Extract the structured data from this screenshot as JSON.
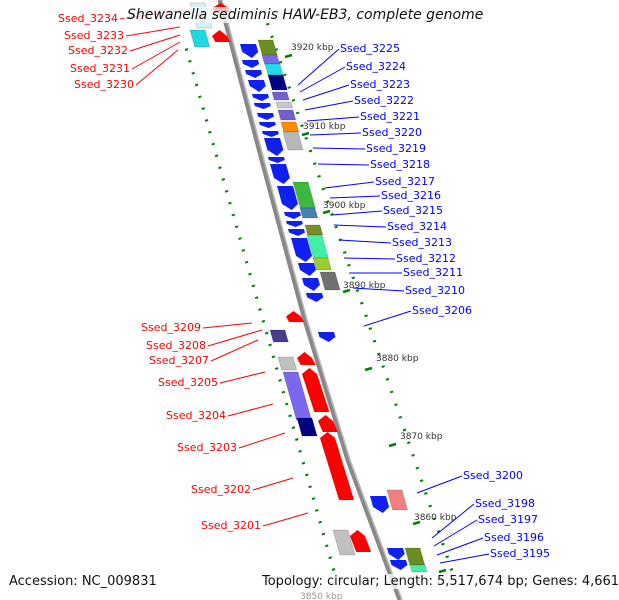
{
  "title": "Shewanella sediminis HAW-EB3, complete genome",
  "footer": {
    "accession": "Accession: NC_009831",
    "summary": "Topology: circular; Length: 5,517,674 bp; Genes: 4,661"
  },
  "colors": {
    "forward_label": "#0000ff",
    "reverse_label": "#ff0000",
    "backbone": "#808080",
    "tick": "#008000"
  },
  "tick_labels": [
    "3920 kbp",
    "3910 kbp",
    "3900 kbp",
    "3890 kbp",
    "3880 kbp",
    "3870 kbp",
    "3860 kbp",
    "3850 kbp"
  ],
  "right_labels": [
    "Ssed_3225",
    "Ssed_3224",
    "Ssed_3223",
    "Ssed_3222",
    "Ssed_3221",
    "Ssed_3220",
    "Ssed_3219",
    "Ssed_3218",
    "Ssed_3217",
    "Ssed_3216",
    "Ssed_3215",
    "Ssed_3214",
    "Ssed_3213",
    "Ssed_3212",
    "Ssed_3211",
    "Ssed_3210",
    "Ssed_3206",
    "Ssed_3200",
    "Ssed_3198",
    "Ssed_3197",
    "Ssed_3196",
    "Ssed_3195"
  ],
  "left_labels": [
    "Ssed_3234",
    "Ssed_3233",
    "Ssed_3232",
    "Ssed_3231",
    "Ssed_3230",
    "Ssed_3209",
    "Ssed_3208",
    "Ssed_3207",
    "Ssed_3205",
    "Ssed_3204",
    "Ssed_3203",
    "Ssed_3202",
    "Ssed_3201"
  ]
}
